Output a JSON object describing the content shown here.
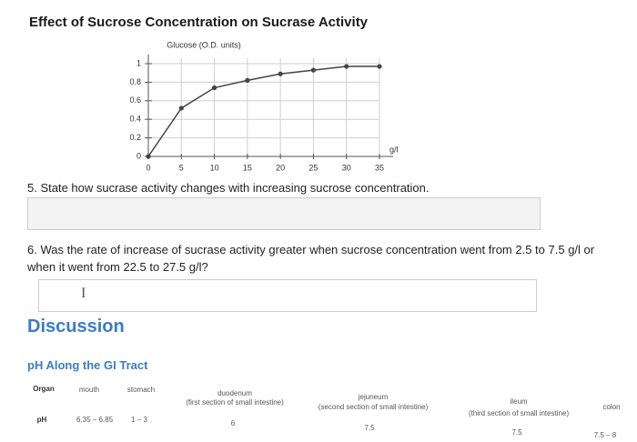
{
  "chart_data": {
    "type": "line",
    "title": "Effect of Sucrose Concentration on Sucrase Activity",
    "ylabel": "Glucose (O.D. units)",
    "xlabel": "g/l",
    "x": [
      0,
      5,
      10,
      15,
      20,
      25,
      30,
      35
    ],
    "values": [
      0,
      0.52,
      0.74,
      0.82,
      0.89,
      0.93,
      0.97,
      0.97
    ],
    "color": "#444444",
    "xlim": [
      0,
      35
    ],
    "ylim": [
      0,
      1
    ],
    "xticks": [
      0,
      5,
      10,
      15,
      20,
      25,
      30,
      35
    ],
    "yticks": [
      0,
      0.2,
      0.4,
      0.6,
      0.8,
      1
    ],
    "grid": true
  },
  "questions": [
    {
      "text": "5. State how sucrase activity changes with increasing sucrose concentration."
    },
    {
      "text": "6. Was the rate of increase of sucrase activity greater when sucrose concentration went from 2.5 to 7.5 g/l or when it went from 22.5 to 27.5 g/l?",
      "cursor": "I"
    }
  ],
  "discussion": {
    "heading": "Discussion",
    "subheading": "pH Along the GI Tract"
  },
  "table": {
    "header": [
      "Organ",
      "mouth",
      "stomach",
      "duodenum",
      "jejuneum",
      "ileum",
      "colon"
    ],
    "notes": [
      "(first section of small intestine)",
      "(second section of small intestine)",
      "(third section of small intestine)"
    ],
    "row": [
      "pH",
      "6.35 – 6.85",
      "1 – 3",
      "6",
      "7.5",
      "7.5",
      "7.5 – 8"
    ]
  }
}
